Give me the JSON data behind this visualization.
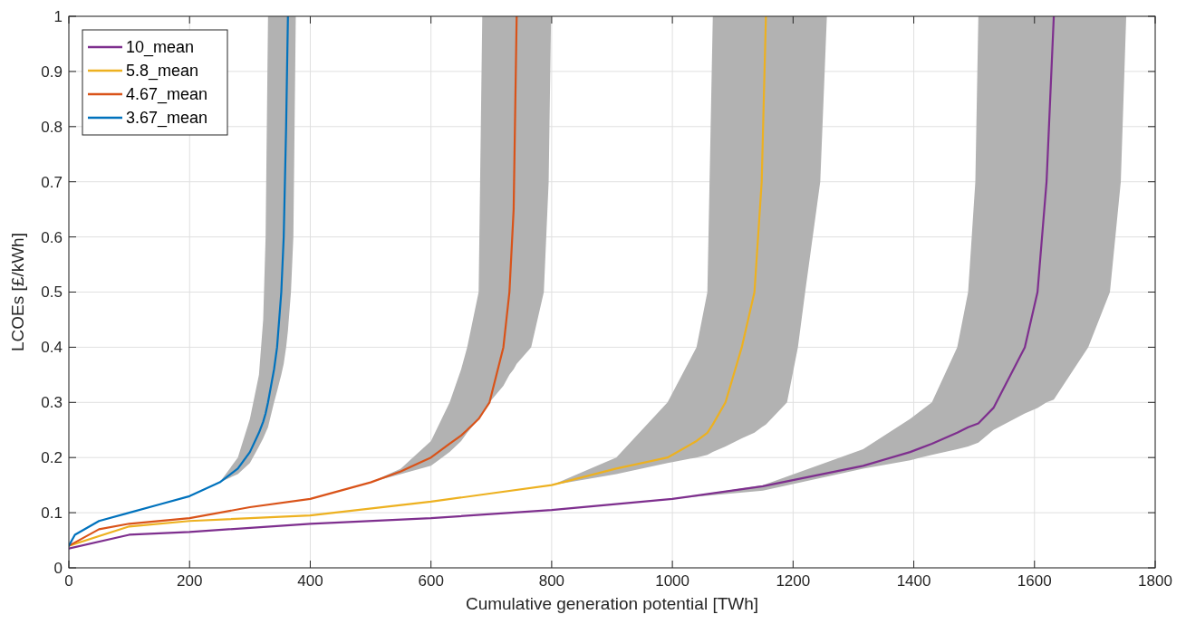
{
  "chart_data": {
    "type": "line",
    "xlabel": "Cumulative generation potential [TWh]",
    "ylabel": "LCOEs [£/kWh]",
    "xlim": [
      0,
      1800
    ],
    "xticks": [
      0,
      200,
      400,
      600,
      800,
      1000,
      1200,
      1400,
      1600,
      1800
    ],
    "ylim": [
      0,
      1
    ],
    "yticks": [
      0,
      0.1,
      0.2,
      0.3,
      0.4,
      0.5,
      0.6,
      0.7,
      0.8,
      0.9,
      1
    ],
    "grid": true,
    "legend": "top left",
    "line_style": "solid",
    "marker": "none",
    "series": [
      {
        "name": "10_mean",
        "color": "#7e2f8e",
        "x": [
          0,
          100,
          200,
          400,
          600,
          800,
          1000,
          1150,
          1316,
          1394,
          1430,
          1472,
          1490,
          1502,
          1507,
          1532,
          1584,
          1605,
          1620,
          1632,
          1689,
          1725,
          1743,
          1752
        ],
        "values": [
          0.035,
          0.06,
          0.065,
          0.08,
          0.09,
          0.105,
          0.125,
          0.148,
          0.185,
          0.21,
          0.225,
          0.245,
          0.255,
          0.26,
          0.262,
          0.29,
          0.4,
          0.5,
          0.7,
          1,
          null,
          null,
          null,
          null
        ],
        "upper": [
          0.035,
          0.06,
          0.065,
          0.08,
          0.09,
          0.105,
          0.125,
          0.15,
          0.215,
          0.27,
          0.3,
          0.4,
          0.5,
          0.7,
          1,
          1,
          1,
          1,
          1,
          1,
          1,
          1,
          1,
          1
        ],
        "lower": [
          0.035,
          0.06,
          0.065,
          0.08,
          0.09,
          0.105,
          0.125,
          0.14,
          0.18,
          0.195,
          0.205,
          0.215,
          0.22,
          0.225,
          0.227,
          0.25,
          0.28,
          0.29,
          0.3,
          0.305,
          0.4,
          0.5,
          0.7,
          1
        ]
      },
      {
        "name": "5.8_mean",
        "color": "#edb120",
        "x": [
          0,
          100,
          200,
          400,
          600,
          700,
          800,
          907,
          992,
          1040,
          1058,
          1067,
          1088,
          1115,
          1136,
          1148,
          1155,
          1190,
          1208,
          1220,
          1245,
          1256
        ],
        "values": [
          0.04,
          0.075,
          0.085,
          0.095,
          0.12,
          0.135,
          0.15,
          0.18,
          0.2,
          0.23,
          0.245,
          0.26,
          0.3,
          0.4,
          0.5,
          0.7,
          1,
          null,
          null,
          null,
          null,
          null
        ],
        "upper": [
          0.04,
          0.075,
          0.085,
          0.095,
          0.12,
          0.135,
          0.15,
          0.2,
          0.3,
          0.4,
          0.5,
          1,
          1,
          1,
          1,
          1,
          1,
          1,
          1,
          1,
          1,
          1
        ],
        "lower": [
          0.04,
          0.075,
          0.085,
          0.095,
          0.12,
          0.135,
          0.15,
          0.17,
          0.19,
          0.2,
          0.205,
          0.21,
          0.22,
          0.235,
          0.245,
          0.255,
          0.26,
          0.3,
          0.4,
          0.5,
          0.7,
          1
        ]
      },
      {
        "name": "4.67_mean",
        "color": "#d95319",
        "x": [
          0,
          50,
          100,
          200,
          300,
          400,
          500,
          550,
          600,
          631,
          650,
          660,
          679,
          685,
          697,
          720,
          730,
          737,
          742,
          766,
          787,
          795,
          799
        ],
        "values": [
          0.04,
          0.07,
          0.08,
          0.09,
          0.11,
          0.125,
          0.155,
          0.175,
          0.2,
          0.225,
          0.24,
          0.25,
          0.27,
          0.28,
          0.3,
          0.4,
          0.5,
          0.65,
          1,
          null,
          null,
          null,
          null
        ],
        "upper": [
          0.04,
          0.07,
          0.08,
          0.09,
          0.11,
          0.125,
          0.155,
          0.18,
          0.23,
          0.3,
          0.36,
          0.4,
          0.5,
          1,
          1,
          1,
          1,
          1,
          1,
          1,
          1,
          1,
          1
        ],
        "lower": [
          0.04,
          0.07,
          0.08,
          0.09,
          0.11,
          0.125,
          0.155,
          0.17,
          0.185,
          0.21,
          0.23,
          0.245,
          0.27,
          0.28,
          0.3,
          0.33,
          0.35,
          0.36,
          0.37,
          0.4,
          0.5,
          0.7,
          1
        ]
      },
      {
        "name": "3.67_mean",
        "color": "#0072bd",
        "x": [
          0,
          10,
          50,
          100,
          150,
          200,
          250,
          280,
          300,
          315,
          322,
          326,
          330,
          340,
          345,
          352,
          356,
          360,
          363,
          368,
          372,
          376
        ],
        "values": [
          0.04,
          0.06,
          0.085,
          0.1,
          0.115,
          0.13,
          0.155,
          0.18,
          0.21,
          0.245,
          0.265,
          0.28,
          0.3,
          0.36,
          0.4,
          0.5,
          0.6,
          0.8,
          1,
          null,
          null,
          null
        ],
        "upper": [
          0.04,
          0.06,
          0.085,
          0.1,
          0.115,
          0.13,
          0.155,
          0.2,
          0.27,
          0.35,
          0.45,
          0.6,
          1,
          1,
          1,
          1,
          1,
          1,
          1,
          1,
          1,
          1
        ],
        "lower": [
          0.04,
          0.06,
          0.085,
          0.1,
          0.115,
          0.13,
          0.155,
          0.17,
          0.19,
          0.22,
          0.235,
          0.245,
          0.255,
          0.3,
          0.32,
          0.35,
          0.37,
          0.4,
          0.43,
          0.5,
          0.6,
          1
        ]
      }
    ]
  }
}
